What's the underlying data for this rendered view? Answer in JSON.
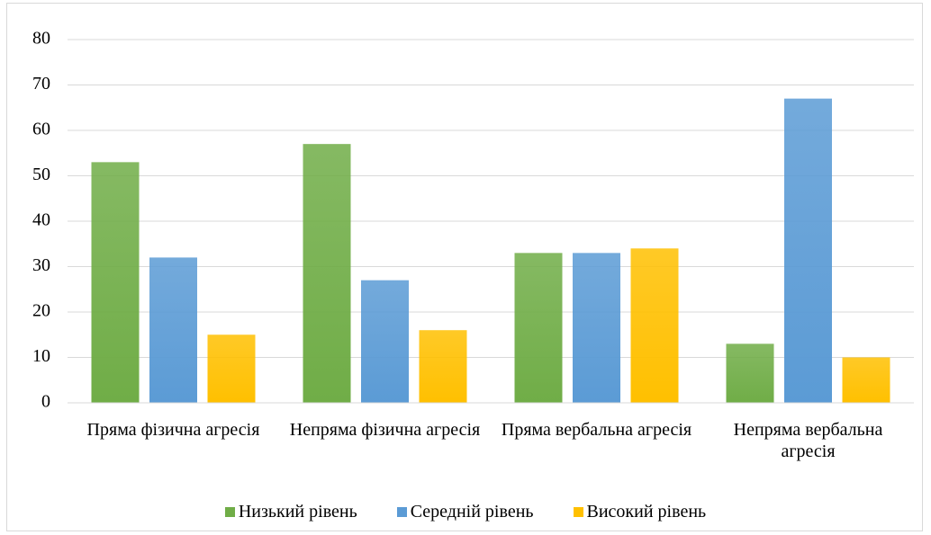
{
  "chart_data": {
    "type": "bar",
    "categories": [
      "Пряма фізична агресія",
      "Непряма фізична агресія",
      "Пряма вербальна агресія",
      "Непряма вербальна агресія"
    ],
    "series": [
      {
        "name": "Низький рівень",
        "color": "#70ad47",
        "values": [
          53,
          57,
          33,
          13
        ]
      },
      {
        "name": "Середній рівень",
        "color": "#5b9bd5",
        "values": [
          32,
          27,
          33,
          67
        ]
      },
      {
        "name": "Високий рівень",
        "color": "#ffc000",
        "values": [
          15,
          16,
          34,
          10
        ]
      }
    ],
    "ylim": [
      0,
      80
    ],
    "yticks": [
      0,
      10,
      20,
      30,
      40,
      50,
      60,
      70,
      80
    ],
    "grid": true,
    "legend": "bottom"
  }
}
